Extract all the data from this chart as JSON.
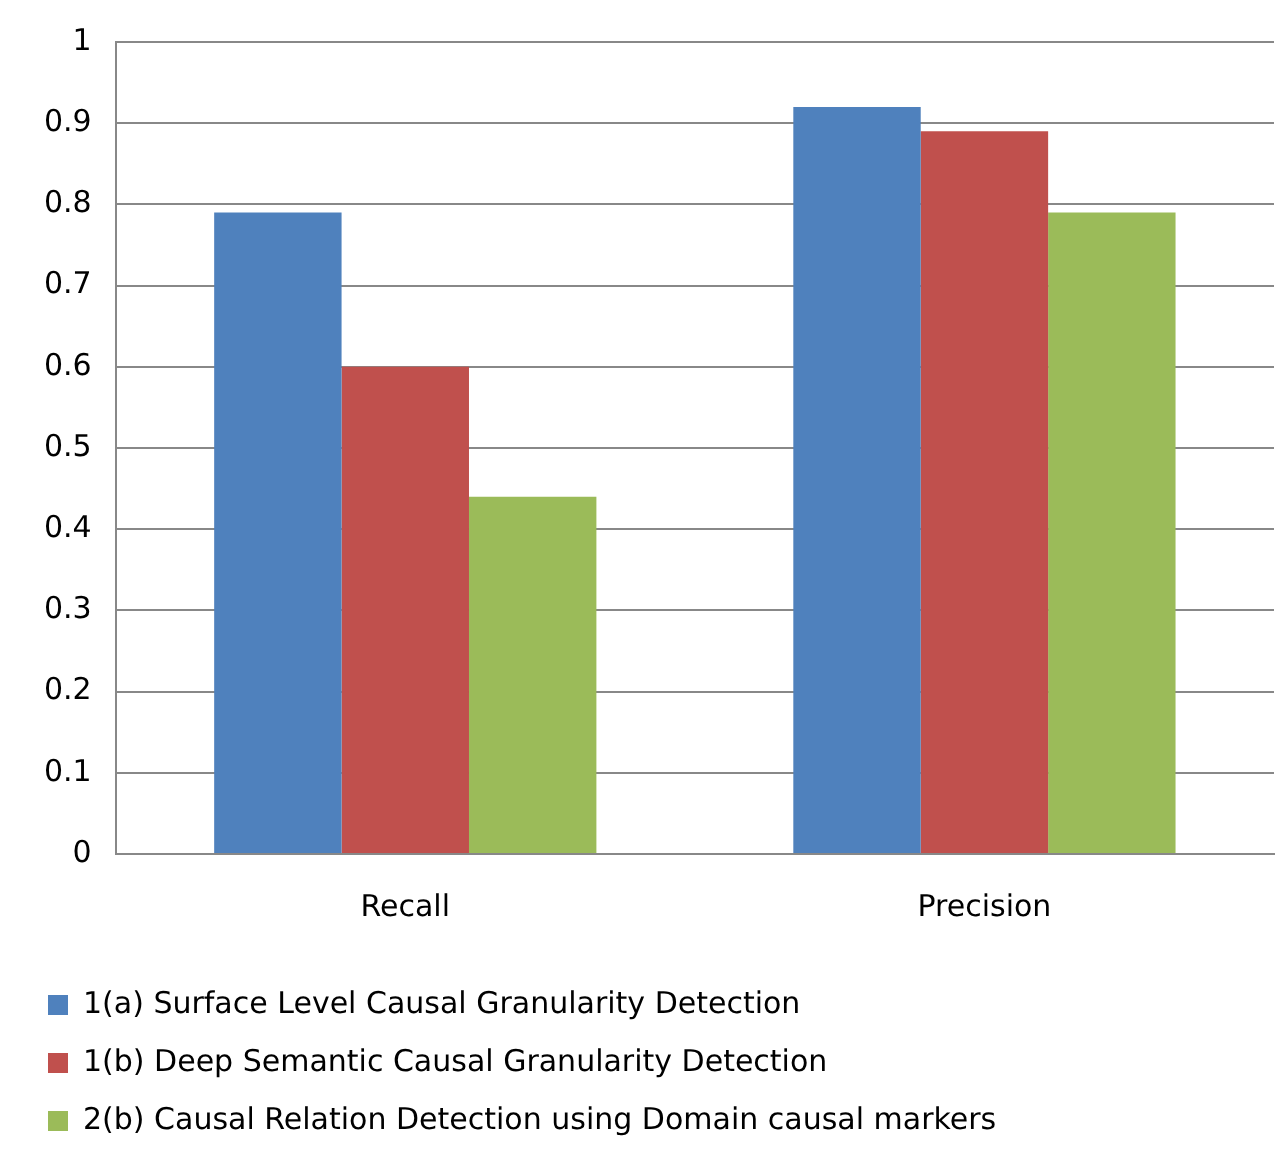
{
  "chart_data": {
    "type": "bar",
    "categories": [
      "Recall",
      "Precision"
    ],
    "series": [
      {
        "name": "1(a) Surface Level Causal Granularity Detection",
        "color": "#4f81bd",
        "values": [
          0.79,
          0.92
        ]
      },
      {
        "name": "1(b) Deep Semantic Causal Granularity Detection",
        "color": "#c0504d",
        "values": [
          0.6,
          0.89
        ]
      },
      {
        "name": "2(b) Causal Relation Detection using Domain causal markers",
        "color": "#9bbb59",
        "values": [
          0.44,
          0.79
        ]
      }
    ],
    "ylim": [
      0,
      1
    ],
    "yticks": [
      0,
      0.1,
      0.2,
      0.3,
      0.4,
      0.5,
      0.6,
      0.7,
      0.8,
      0.9,
      1
    ],
    "grid": "y",
    "legend": "bottom"
  }
}
